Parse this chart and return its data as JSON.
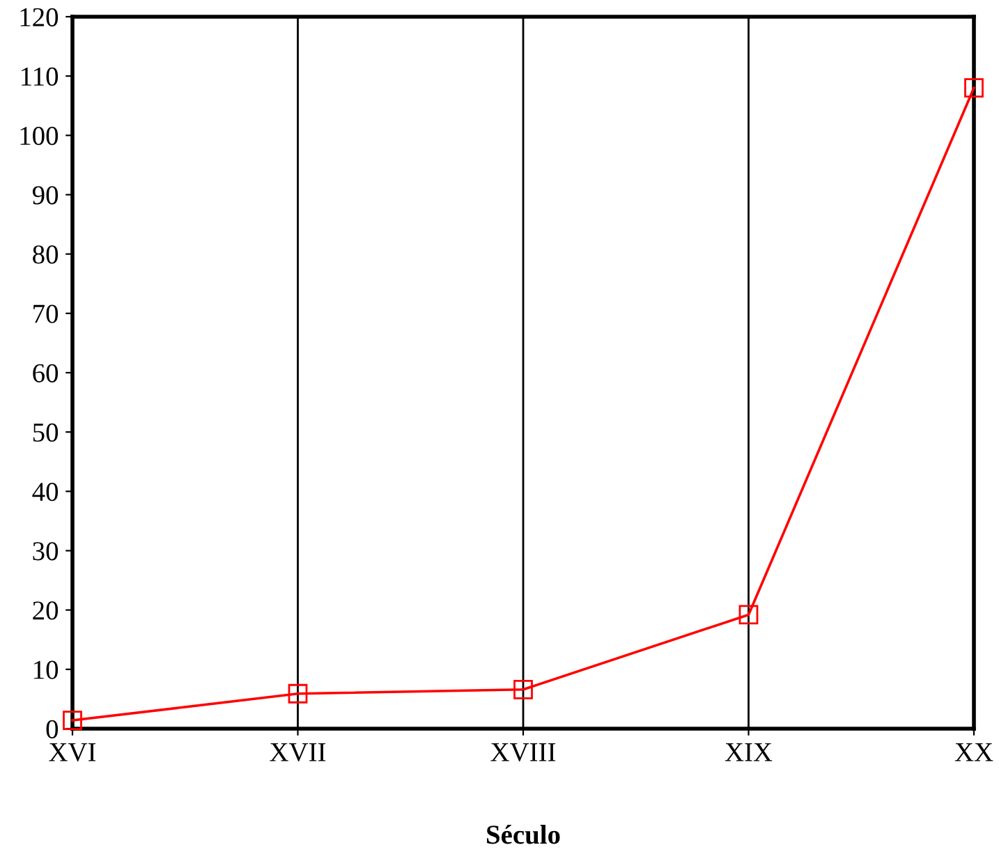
{
  "chart_data": {
    "type": "line",
    "xlabel": "Século",
    "categories": [
      "XVI",
      "XVII",
      "XVIII",
      "XIX",
      "XX"
    ],
    "series": [
      {
        "color": "#ff0000",
        "values": [
          1.4,
          5.9,
          6.6,
          19.2,
          108
        ]
      }
    ],
    "ylim": [
      0,
      120
    ],
    "yticks": [
      0,
      10,
      20,
      30,
      40,
      50,
      60,
      70,
      80,
      90,
      100,
      110,
      120
    ],
    "grid": "x",
    "marker": "square",
    "line_style": "solid",
    "legend": false
  }
}
